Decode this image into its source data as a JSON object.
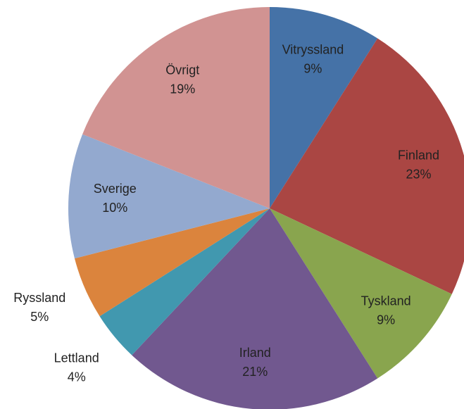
{
  "chart_data": {
    "type": "pie",
    "categories": [
      "Vitryssland",
      "Finland",
      "Tyskland",
      "Irland",
      "Lettland",
      "Ryssland",
      "Sverige",
      "Övrigt"
    ],
    "values": [
      9,
      23,
      9,
      21,
      4,
      5,
      10,
      19
    ],
    "value_labels": [
      "9%",
      "23%",
      "9%",
      "21%",
      "4%",
      "5%",
      "10%",
      "19%"
    ],
    "colors": [
      "#4572a7",
      "#aa4643",
      "#89a54e",
      "#71588f",
      "#4198af",
      "#db843d",
      "#93a9cf",
      "#d19392"
    ]
  }
}
